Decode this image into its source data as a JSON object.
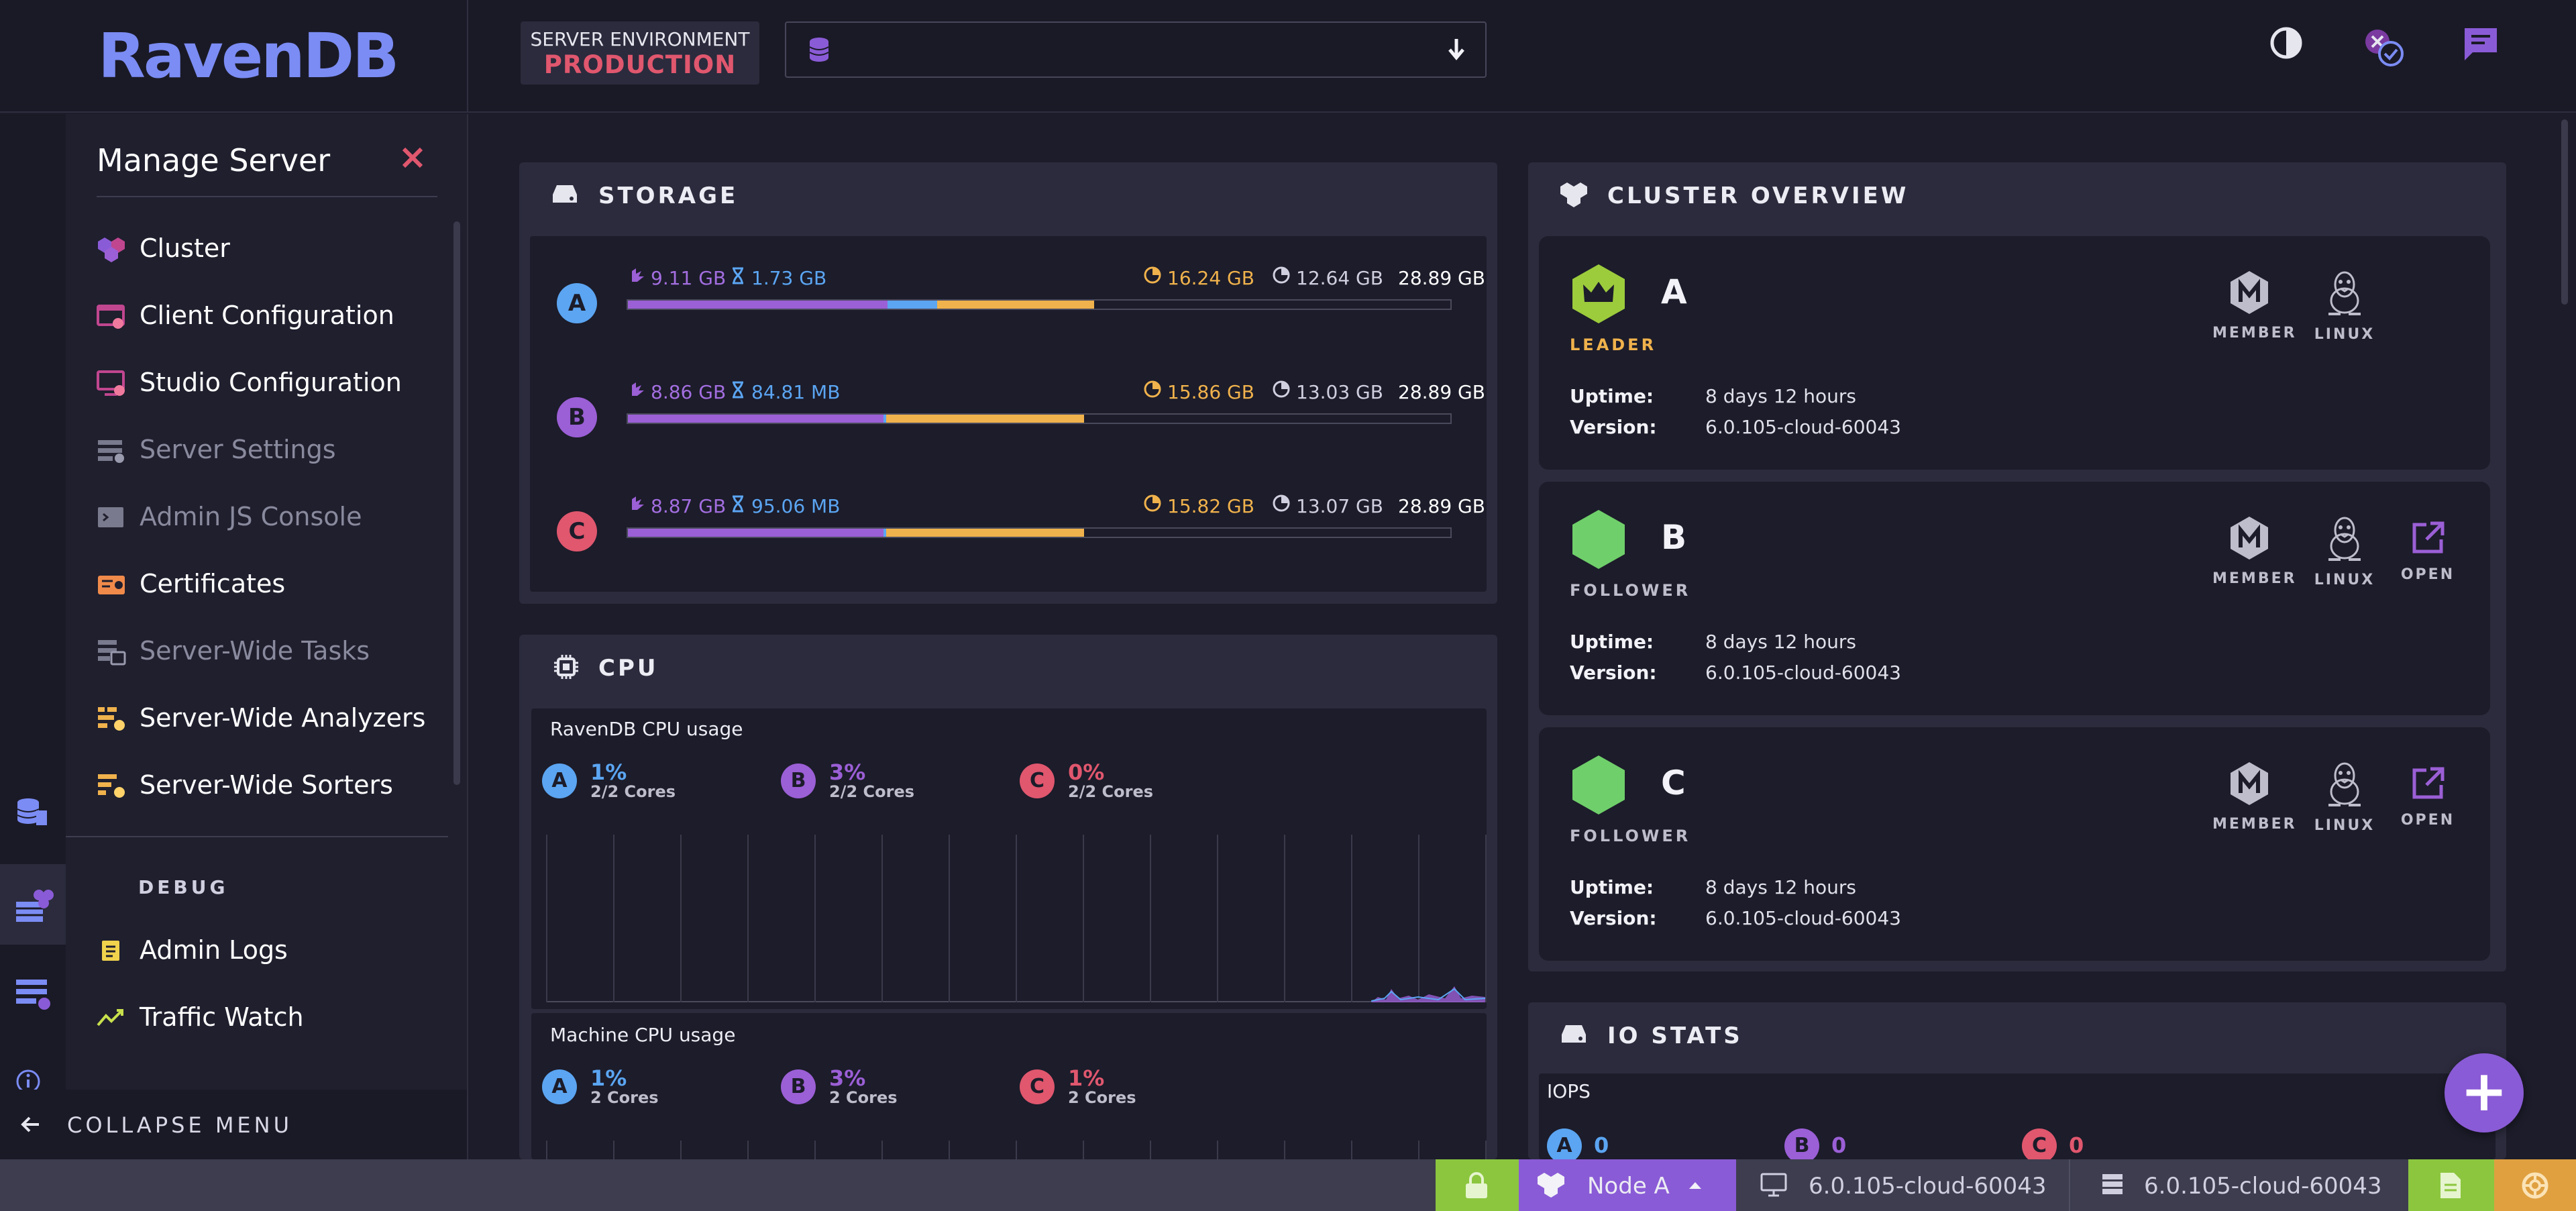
{
  "brand": {
    "logo_text": "RavenDB"
  },
  "header": {
    "env_label": "SERVER ENVIRONMENT",
    "env_value": "PRODUCTION",
    "database_select_value": ""
  },
  "menu": {
    "title": "Manage Server",
    "items": [
      {
        "label": "Cluster",
        "icon": "cluster-icon",
        "enabled": true
      },
      {
        "label": "Client Configuration",
        "icon": "client-config-icon",
        "enabled": true
      },
      {
        "label": "Studio Configuration",
        "icon": "studio-config-icon",
        "enabled": true
      },
      {
        "label": "Server Settings",
        "icon": "server-settings-icon",
        "enabled": false
      },
      {
        "label": "Admin JS Console",
        "icon": "js-console-icon",
        "enabled": false
      },
      {
        "label": "Certificates",
        "icon": "certificate-icon",
        "enabled": true
      },
      {
        "label": "Server-Wide Tasks",
        "icon": "server-tasks-icon",
        "enabled": false
      },
      {
        "label": "Server-Wide Analyzers",
        "icon": "analyzers-icon",
        "enabled": true
      },
      {
        "label": "Server-Wide Sorters",
        "icon": "sorters-icon",
        "enabled": true
      }
    ],
    "debug_heading": "DEBUG",
    "debug_items": [
      {
        "label": "Admin Logs",
        "icon": "admin-logs-icon"
      },
      {
        "label": "Traffic Watch",
        "icon": "traffic-watch-icon"
      }
    ],
    "collapse_label": "COLLAPSE MENU"
  },
  "storage": {
    "title": "STORAGE",
    "nodes": [
      {
        "node": "A",
        "documents": "9.11 GB",
        "temp": "1.73 GB",
        "used": "16.24 GB",
        "free": "12.64 GB",
        "total": "28.89 GB",
        "docs_fraction": 0.315,
        "temp_fraction": 0.06,
        "other_fraction": 0.19
      },
      {
        "node": "B",
        "documents": "8.86 GB",
        "temp": "84.81 MB",
        "used": "15.86 GB",
        "free": "13.03 GB",
        "total": "28.89 GB",
        "docs_fraction": 0.31,
        "temp_fraction": 0.003,
        "other_fraction": 0.24
      },
      {
        "node": "C",
        "documents": "8.87 GB",
        "temp": "95.06 MB",
        "used": "15.82 GB",
        "free": "13.07 GB",
        "total": "28.89 GB",
        "docs_fraction": 0.31,
        "temp_fraction": 0.003,
        "other_fraction": 0.24
      }
    ]
  },
  "cpu": {
    "title": "CPU",
    "ravendb_label": "RavenDB CPU usage",
    "ravendb": [
      {
        "node": "A",
        "percent": "1%",
        "cores": "2/2 Cores"
      },
      {
        "node": "B",
        "percent": "3%",
        "cores": "2/2 Cores"
      },
      {
        "node": "C",
        "percent": "0%",
        "cores": "2/2 Cores"
      }
    ],
    "machine_label": "Machine CPU usage",
    "machine": [
      {
        "node": "A",
        "percent": "1%",
        "cores": "2 Cores"
      },
      {
        "node": "B",
        "percent": "3%",
        "cores": "2 Cores"
      },
      {
        "node": "C",
        "percent": "1%",
        "cores": "2 Cores"
      }
    ]
  },
  "cluster": {
    "title": "CLUSTER OVERVIEW",
    "nodes": [
      {
        "name": "A",
        "role": "LEADER",
        "uptime_label": "Uptime:",
        "uptime": "8 days 12 hours",
        "version_label": "Version:",
        "version": "6.0.105-cloud-60043",
        "member": "MEMBER",
        "os": "LINUX",
        "open": ""
      },
      {
        "name": "B",
        "role": "FOLLOWER",
        "uptime_label": "Uptime:",
        "uptime": "8 days 12 hours",
        "version_label": "Version:",
        "version": "6.0.105-cloud-60043",
        "member": "MEMBER",
        "os": "LINUX",
        "open": "OPEN"
      },
      {
        "name": "C",
        "role": "FOLLOWER",
        "uptime_label": "Uptime:",
        "uptime": "8 days 12 hours",
        "version_label": "Version:",
        "version": "6.0.105-cloud-60043",
        "member": "MEMBER",
        "os": "LINUX",
        "open": "OPEN"
      }
    ]
  },
  "io": {
    "title": "IO STATS",
    "iops_label": "IOPS",
    "nodes": [
      {
        "node": "A",
        "value": "0"
      },
      {
        "node": "B",
        "value": "0"
      },
      {
        "node": "C",
        "value": "0"
      }
    ]
  },
  "statusbar": {
    "node_label": "Node A",
    "client_version": "6.0.105-cloud-60043",
    "server_version": "6.0.105-cloud-60043"
  },
  "colors": {
    "accent": "#8a5bd6",
    "leader": "#9ccc3c",
    "follower": "#6fcf6a",
    "docs": "#9b5fd6",
    "temp": "#5ba5f2",
    "other": "#f0b24c",
    "danger": "#e0576e"
  }
}
